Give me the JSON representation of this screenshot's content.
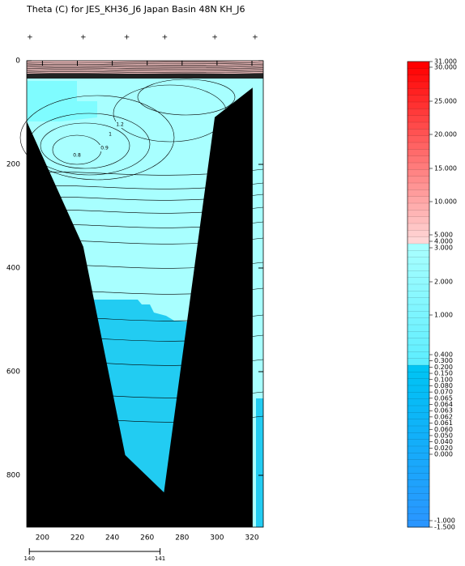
{
  "chart_data": {
    "type": "section",
    "title": "Theta (C) for JES_KH36_J6 Japan Basin 48N KH_J6",
    "xlim": [
      191,
      326.5
    ],
    "xticks": [
      200,
      220,
      240,
      260,
      280,
      300,
      320
    ],
    "ylim": [
      900,
      0
    ],
    "yticks": [
      0,
      200,
      400,
      600,
      800
    ],
    "x2lim": [
      139.98,
      141.79
    ],
    "x2ticks": [
      140,
      141
    ],
    "stations_x": [
      192.8,
      223.4,
      248.3,
      270.1,
      298.7,
      321.8
    ],
    "bottom": {
      "x": [
        191,
        223.4,
        247.4,
        269.6,
        298.7,
        320.4
      ],
      "depth": [
        117,
        359,
        761,
        833,
        109,
        52
      ]
    },
    "contour_labels": [
      1.2,
      1,
      0.9,
      0.8
    ],
    "colors": {
      "surface": "#f6c4c4",
      "upper": "#a8ffff",
      "patch": "#7ffcff",
      "deep": "#22ccf2",
      "land": "#000000"
    },
    "colorbar": {
      "ticks": [
        {
          "value": 31,
          "label": "31.000"
        },
        {
          "value": 30,
          "label": "30.000"
        },
        {
          "value": 25,
          "label": "25.000"
        },
        {
          "value": 20,
          "label": "20.000"
        },
        {
          "value": 15,
          "label": "15.000"
        },
        {
          "value": 10,
          "label": "10.000"
        },
        {
          "value": 5,
          "label": "5.000"
        },
        {
          "value": 4,
          "label": "4.000"
        },
        {
          "value": 3,
          "label": "3.000"
        },
        {
          "value": 2,
          "label": "2.000"
        },
        {
          "value": 1,
          "label": "1.000"
        },
        {
          "value": 0.4,
          "label": "0.400"
        },
        {
          "value": 0.3,
          "label": "0.300"
        },
        {
          "value": 0.2,
          "label": "0.200"
        },
        {
          "value": 0.15,
          "label": "0.150"
        },
        {
          "value": 0.1,
          "label": "0.100"
        },
        {
          "value": 0.08,
          "label": "0.080"
        },
        {
          "value": 0.07,
          "label": "0.070"
        },
        {
          "value": 0.065,
          "label": "0.065"
        },
        {
          "value": 0.064,
          "label": "0.064"
        },
        {
          "value": 0.063,
          "label": "0.063"
        },
        {
          "value": 0.062,
          "label": "0.062"
        },
        {
          "value": 0.061,
          "label": "0.061"
        },
        {
          "value": 0.06,
          "label": "0.060"
        },
        {
          "value": 0.05,
          "label": "0.050"
        },
        {
          "value": 0.04,
          "label": "0.040"
        },
        {
          "value": 0.02,
          "label": "0.020"
        },
        {
          "value": 0,
          "label": "0.000"
        },
        {
          "value": -1,
          "label": "-1.000"
        },
        {
          "value": -1.5,
          "label": "-1.500"
        }
      ],
      "colors": [
        "#ff0000",
        "#ffd6d6",
        "#a8ffff",
        "#5eeeff",
        "#00c4f4",
        "#2a96ff"
      ]
    }
  }
}
